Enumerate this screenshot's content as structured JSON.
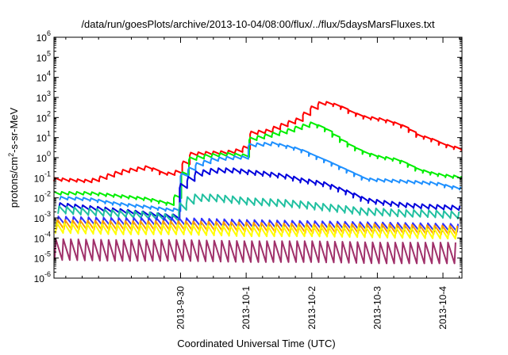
{
  "chart_data": {
    "type": "line",
    "title": "/data/run/goesPlots/archive/2013-10-04/08:00/flux/../flux/5daysMarsFluxes.txt",
    "xlabel": "Coordinated Universal Time (UTC)",
    "ylabel_parts": {
      "base": "protons/cm",
      "sup": "2",
      "rest": "-s-sr-MeV"
    },
    "y_scale": "log",
    "ylim": [
      1e-06,
      1000000.0
    ],
    "y_tick_exponents": [
      -6,
      -5,
      -4,
      -3,
      -2,
      -1,
      0,
      1,
      2,
      3,
      4,
      5,
      6
    ],
    "x_range_days": [
      -2.93,
      3.29
    ],
    "x_ticks": [
      {
        "label": "2013-9-30",
        "day": -1
      },
      {
        "label": "2013-10-1",
        "day": 0
      },
      {
        "label": "2013-10-2",
        "day": 1
      },
      {
        "label": "2013-10-3",
        "day": 2
      },
      {
        "label": "2013-10-4",
        "day": 3
      }
    ],
    "grid": false,
    "legend": "none",
    "sawtooth_period_days": 0.115,
    "series": [
      {
        "color": "#ff0000",
        "min_factor": 0.72,
        "envelope": [
          [
            -2.93,
            0.1
          ],
          [
            -2.4,
            0.08
          ],
          [
            -1.9,
            0.25
          ],
          [
            -1.5,
            0.4
          ],
          [
            -1.3,
            0.2
          ],
          [
            -1.1,
            0.18
          ],
          [
            -0.85,
            1.8
          ],
          [
            -0.6,
            2.0
          ],
          [
            -0.3,
            2.2
          ],
          [
            -0.05,
            3.0
          ],
          [
            0.05,
            20
          ],
          [
            0.3,
            25
          ],
          [
            0.6,
            60
          ],
          [
            0.8,
            100
          ],
          [
            0.95,
            300
          ],
          [
            1.15,
            700
          ],
          [
            1.4,
            450
          ],
          [
            1.6,
            200
          ],
          [
            1.8,
            120
          ],
          [
            2.0,
            100
          ],
          [
            2.2,
            70
          ],
          [
            2.4,
            40
          ],
          [
            2.6,
            15
          ],
          [
            2.8,
            10
          ],
          [
            3.0,
            5
          ],
          [
            3.29,
            3
          ]
        ]
      },
      {
        "color": "#00ee00",
        "min_factor": 0.72,
        "envelope": [
          [
            -2.93,
            0.02
          ],
          [
            -2.4,
            0.02
          ],
          [
            -2.0,
            0.015
          ],
          [
            -1.5,
            0.01
          ],
          [
            -1.2,
            0.006
          ],
          [
            -1.1,
            0.01
          ],
          [
            -0.9,
            1.0
          ],
          [
            -0.6,
            1.5
          ],
          [
            -0.3,
            1.8
          ],
          [
            -0.05,
            1.5
          ],
          [
            0.05,
            10
          ],
          [
            0.3,
            15
          ],
          [
            0.6,
            25
          ],
          [
            0.8,
            40
          ],
          [
            1.0,
            60
          ],
          [
            1.2,
            30
          ],
          [
            1.4,
            10
          ],
          [
            1.6,
            4
          ],
          [
            1.8,
            2
          ],
          [
            2.0,
            1.3
          ],
          [
            2.3,
            0.9
          ],
          [
            2.6,
            0.3
          ],
          [
            2.8,
            0.2
          ],
          [
            3.0,
            0.15
          ],
          [
            3.29,
            0.12
          ]
        ]
      },
      {
        "color": "#1e90ff",
        "min_factor": 0.72,
        "envelope": [
          [
            -2.93,
            0.012
          ],
          [
            -2.4,
            0.01
          ],
          [
            -2.0,
            0.006
          ],
          [
            -1.5,
            0.004
          ],
          [
            -1.2,
            0.003
          ],
          [
            -1.05,
            0.003
          ],
          [
            -1.0,
            0.15
          ],
          [
            -0.8,
            0.5
          ],
          [
            -0.5,
            1.0
          ],
          [
            -0.2,
            1.2
          ],
          [
            -0.05,
            1.2
          ],
          [
            0.05,
            5
          ],
          [
            0.4,
            6
          ],
          [
            0.8,
            3
          ],
          [
            1.0,
            1.5
          ],
          [
            1.2,
            0.8
          ],
          [
            1.4,
            0.4
          ],
          [
            1.6,
            0.2
          ],
          [
            1.8,
            0.1
          ],
          [
            2.0,
            0.09
          ],
          [
            2.3,
            0.08
          ],
          [
            2.6,
            0.07
          ],
          [
            2.9,
            0.06
          ],
          [
            3.1,
            0.04
          ],
          [
            3.29,
            0.035
          ]
        ]
      },
      {
        "color": "#0000dd",
        "min_factor": 0.6,
        "envelope": [
          [
            -2.93,
            0.006
          ],
          [
            -2.4,
            0.004
          ],
          [
            -2.0,
            0.003
          ],
          [
            -1.5,
            0.002
          ],
          [
            -1.2,
            0.0015
          ],
          [
            -1.05,
            0.0015
          ],
          [
            -1.0,
            0.05
          ],
          [
            -0.8,
            0.2
          ],
          [
            -0.5,
            0.3
          ],
          [
            -0.2,
            0.3
          ],
          [
            0.0,
            0.25
          ],
          [
            0.3,
            0.2
          ],
          [
            0.6,
            0.15
          ],
          [
            0.8,
            0.1
          ],
          [
            1.0,
            0.08
          ],
          [
            1.2,
            0.06
          ],
          [
            1.4,
            0.035
          ],
          [
            1.6,
            0.02
          ],
          [
            1.8,
            0.01
          ],
          [
            2.0,
            0.008
          ],
          [
            2.3,
            0.006
          ],
          [
            2.6,
            0.005
          ],
          [
            2.9,
            0.0045
          ],
          [
            3.29,
            0.004
          ]
        ]
      },
      {
        "color": "#20c0a0",
        "min_factor": 0.45,
        "envelope": [
          [
            -2.93,
            0.004
          ],
          [
            -2.4,
            0.003
          ],
          [
            -2.0,
            0.0025
          ],
          [
            -1.5,
            0.002
          ],
          [
            -1.2,
            0.0015
          ],
          [
            -1.05,
            0.0015
          ],
          [
            -1.0,
            0.008
          ],
          [
            -0.8,
            0.015
          ],
          [
            -0.5,
            0.015
          ],
          [
            -0.2,
            0.012
          ],
          [
            0.0,
            0.01
          ],
          [
            0.3,
            0.009
          ],
          [
            0.6,
            0.008
          ],
          [
            0.8,
            0.007
          ],
          [
            1.0,
            0.006
          ],
          [
            1.2,
            0.005
          ],
          [
            1.5,
            0.004
          ],
          [
            1.8,
            0.003
          ],
          [
            2.0,
            0.003
          ],
          [
            2.4,
            0.0025
          ],
          [
            2.7,
            0.0025
          ],
          [
            3.29,
            0.002
          ]
        ]
      },
      {
        "color": "#3030ff",
        "min_factor": 0.4,
        "envelope": [
          [
            -2.93,
            0.0012
          ],
          [
            -2.0,
            0.001
          ],
          [
            -1.0,
            0.001
          ],
          [
            0.0,
            0.0008
          ],
          [
            1.0,
            0.0007
          ],
          [
            2.0,
            0.0006
          ],
          [
            3.29,
            0.0005
          ]
        ]
      },
      {
        "color": "#ff9900",
        "min_factor": 0.35,
        "envelope": [
          [
            -2.93,
            0.0008
          ],
          [
            -2.0,
            0.0007
          ],
          [
            -1.0,
            0.0007
          ],
          [
            0.0,
            0.0006
          ],
          [
            1.0,
            0.0005
          ],
          [
            2.0,
            0.0005
          ],
          [
            3.29,
            0.0004
          ]
        ]
      },
      {
        "color": "#ffff00",
        "min_factor": 0.3,
        "envelope": [
          [
            -2.93,
            0.0006
          ],
          [
            -2.0,
            0.0005
          ],
          [
            -1.0,
            0.0005
          ],
          [
            0.0,
            0.0004
          ],
          [
            1.0,
            0.0004
          ],
          [
            2.0,
            0.00035
          ],
          [
            3.29,
            0.0003
          ]
        ]
      },
      {
        "color": "#a0306a",
        "min_factor": 0.09,
        "envelope": [
          [
            -2.93,
            9e-05
          ],
          [
            -2.0,
            8e-05
          ],
          [
            -1.0,
            8e-05
          ],
          [
            0.0,
            7e-05
          ],
          [
            1.0,
            7e-05
          ],
          [
            2.0,
            6e-05
          ],
          [
            3.29,
            6e-05
          ]
        ]
      }
    ]
  }
}
